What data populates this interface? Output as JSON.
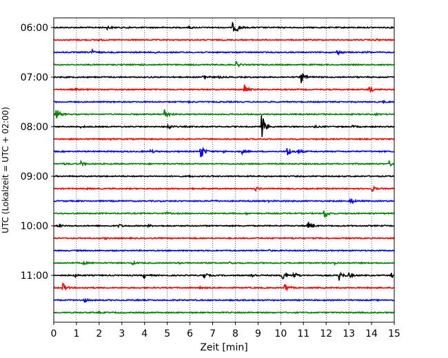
{
  "chart_data": {
    "type": "line",
    "title": "",
    "xlabel": "Zeit  [min]",
    "ylabel": "UTC (Lokalzeit = UTC + 02:00)",
    "xlim": [
      0,
      15
    ],
    "x_ticks": [
      "0",
      "1",
      "2",
      "3",
      "4",
      "5",
      "6",
      "7",
      "8",
      "9",
      "10",
      "11",
      "12",
      "13",
      "14",
      "15"
    ],
    "y_tick_labels": [
      "06:00",
      "07:00",
      "08:00",
      "09:00",
      "10:00",
      "11:00"
    ],
    "minutes_per_trace": 15,
    "grid": "vertical dotted at each minute",
    "colors": {
      "cycle": [
        "#000000",
        "#ff0000",
        "#0000ff",
        "#008000"
      ]
    },
    "traces": [
      {
        "events": [
          [
            2.4,
            0.18
          ],
          [
            3.2,
            0.12
          ],
          [
            7.9,
            0.6
          ],
          [
            8.05,
            0.45
          ],
          [
            6.0,
            0.1
          ]
        ]
      },
      {
        "events": [
          [
            14.2,
            0.12
          ],
          [
            2.0,
            0.08
          ]
        ]
      },
      {
        "events": [
          [
            1.65,
            0.45
          ],
          [
            12.5,
            0.3
          ],
          [
            4.5,
            0.08
          ],
          [
            13.8,
            0.1
          ]
        ]
      },
      {
        "events": [
          [
            8.05,
            0.35
          ],
          [
            3.8,
            0.08
          ]
        ]
      },
      {
        "events": [
          [
            6.6,
            0.4
          ],
          [
            10.9,
            0.9
          ],
          [
            7.3,
            0.1
          ]
        ]
      },
      {
        "events": [
          [
            8.4,
            0.7
          ],
          [
            13.9,
            0.6
          ],
          [
            1.0,
            0.08
          ]
        ]
      },
      {
        "events": [
          [
            14.5,
            0.08
          ],
          [
            6.0,
            0.06
          ]
        ]
      },
      {
        "events": [
          [
            0.15,
            0.6
          ],
          [
            4.9,
            0.75
          ],
          [
            14.2,
            0.08
          ]
        ]
      },
      {
        "events": [
          [
            5.05,
            0.4
          ],
          [
            9.2,
            1.6
          ],
          [
            1.2,
            0.1
          ],
          [
            11.5,
            0.12
          ],
          [
            13.2,
            0.1
          ]
        ]
      },
      {
        "events": [
          [
            2.5,
            0.06
          ]
        ]
      },
      {
        "events": [
          [
            6.5,
            1.0
          ],
          [
            10.3,
            0.8
          ],
          [
            8.3,
            0.3
          ],
          [
            4.3,
            0.2
          ],
          [
            7.5,
            0.12
          ],
          [
            10.8,
            0.3
          ]
        ]
      },
      {
        "events": [
          [
            1.2,
            0.3
          ],
          [
            14.8,
            0.35
          ],
          [
            0.5,
            0.08
          ]
        ]
      },
      {
        "events": [
          [
            6.0,
            0.06
          ]
        ]
      },
      {
        "events": [
          [
            8.9,
            0.25
          ],
          [
            14.0,
            0.4
          ],
          [
            1.5,
            0.06
          ]
        ]
      },
      {
        "events": [
          [
            13.1,
            0.4
          ],
          [
            7.0,
            0.1
          ],
          [
            9.5,
            0.08
          ],
          [
            10.2,
            0.08
          ]
        ]
      },
      {
        "events": [
          [
            11.95,
            0.6
          ],
          [
            5.0,
            0.1
          ],
          [
            8.5,
            0.08
          ]
        ]
      },
      {
        "events": [
          [
            2.9,
            0.2
          ],
          [
            11.2,
            0.6
          ],
          [
            0.2,
            0.15
          ],
          [
            4.2,
            0.1
          ]
        ]
      },
      {
        "events": [
          [
            2.3,
            0.08
          ],
          [
            10.5,
            0.08
          ]
        ]
      },
      {
        "events": [
          [
            9.5,
            0.06
          ]
        ]
      },
      {
        "events": [
          [
            1.3,
            0.2
          ],
          [
            3.5,
            0.15
          ],
          [
            7.8,
            0.15
          ],
          [
            12.4,
            0.15
          ],
          [
            5.5,
            0.06
          ]
        ]
      },
      {
        "events": [
          [
            4.0,
            0.3
          ],
          [
            6.6,
            0.45
          ],
          [
            8.7,
            0.35
          ],
          [
            10.1,
            0.7
          ],
          [
            12.6,
            0.7
          ],
          [
            0.9,
            0.25
          ],
          [
            10.6,
            0.4
          ],
          [
            13.0,
            0.3
          ],
          [
            14.9,
            0.3
          ]
        ]
      },
      {
        "events": [
          [
            0.4,
            0.6
          ],
          [
            10.2,
            0.55
          ],
          [
            1.4,
            0.1
          ],
          [
            6.5,
            0.08
          ]
        ]
      },
      {
        "events": [
          [
            1.35,
            0.25
          ],
          [
            3.7,
            0.06
          ]
        ]
      },
      {
        "events": [
          [
            2.0,
            0.06
          ]
        ]
      }
    ]
  }
}
